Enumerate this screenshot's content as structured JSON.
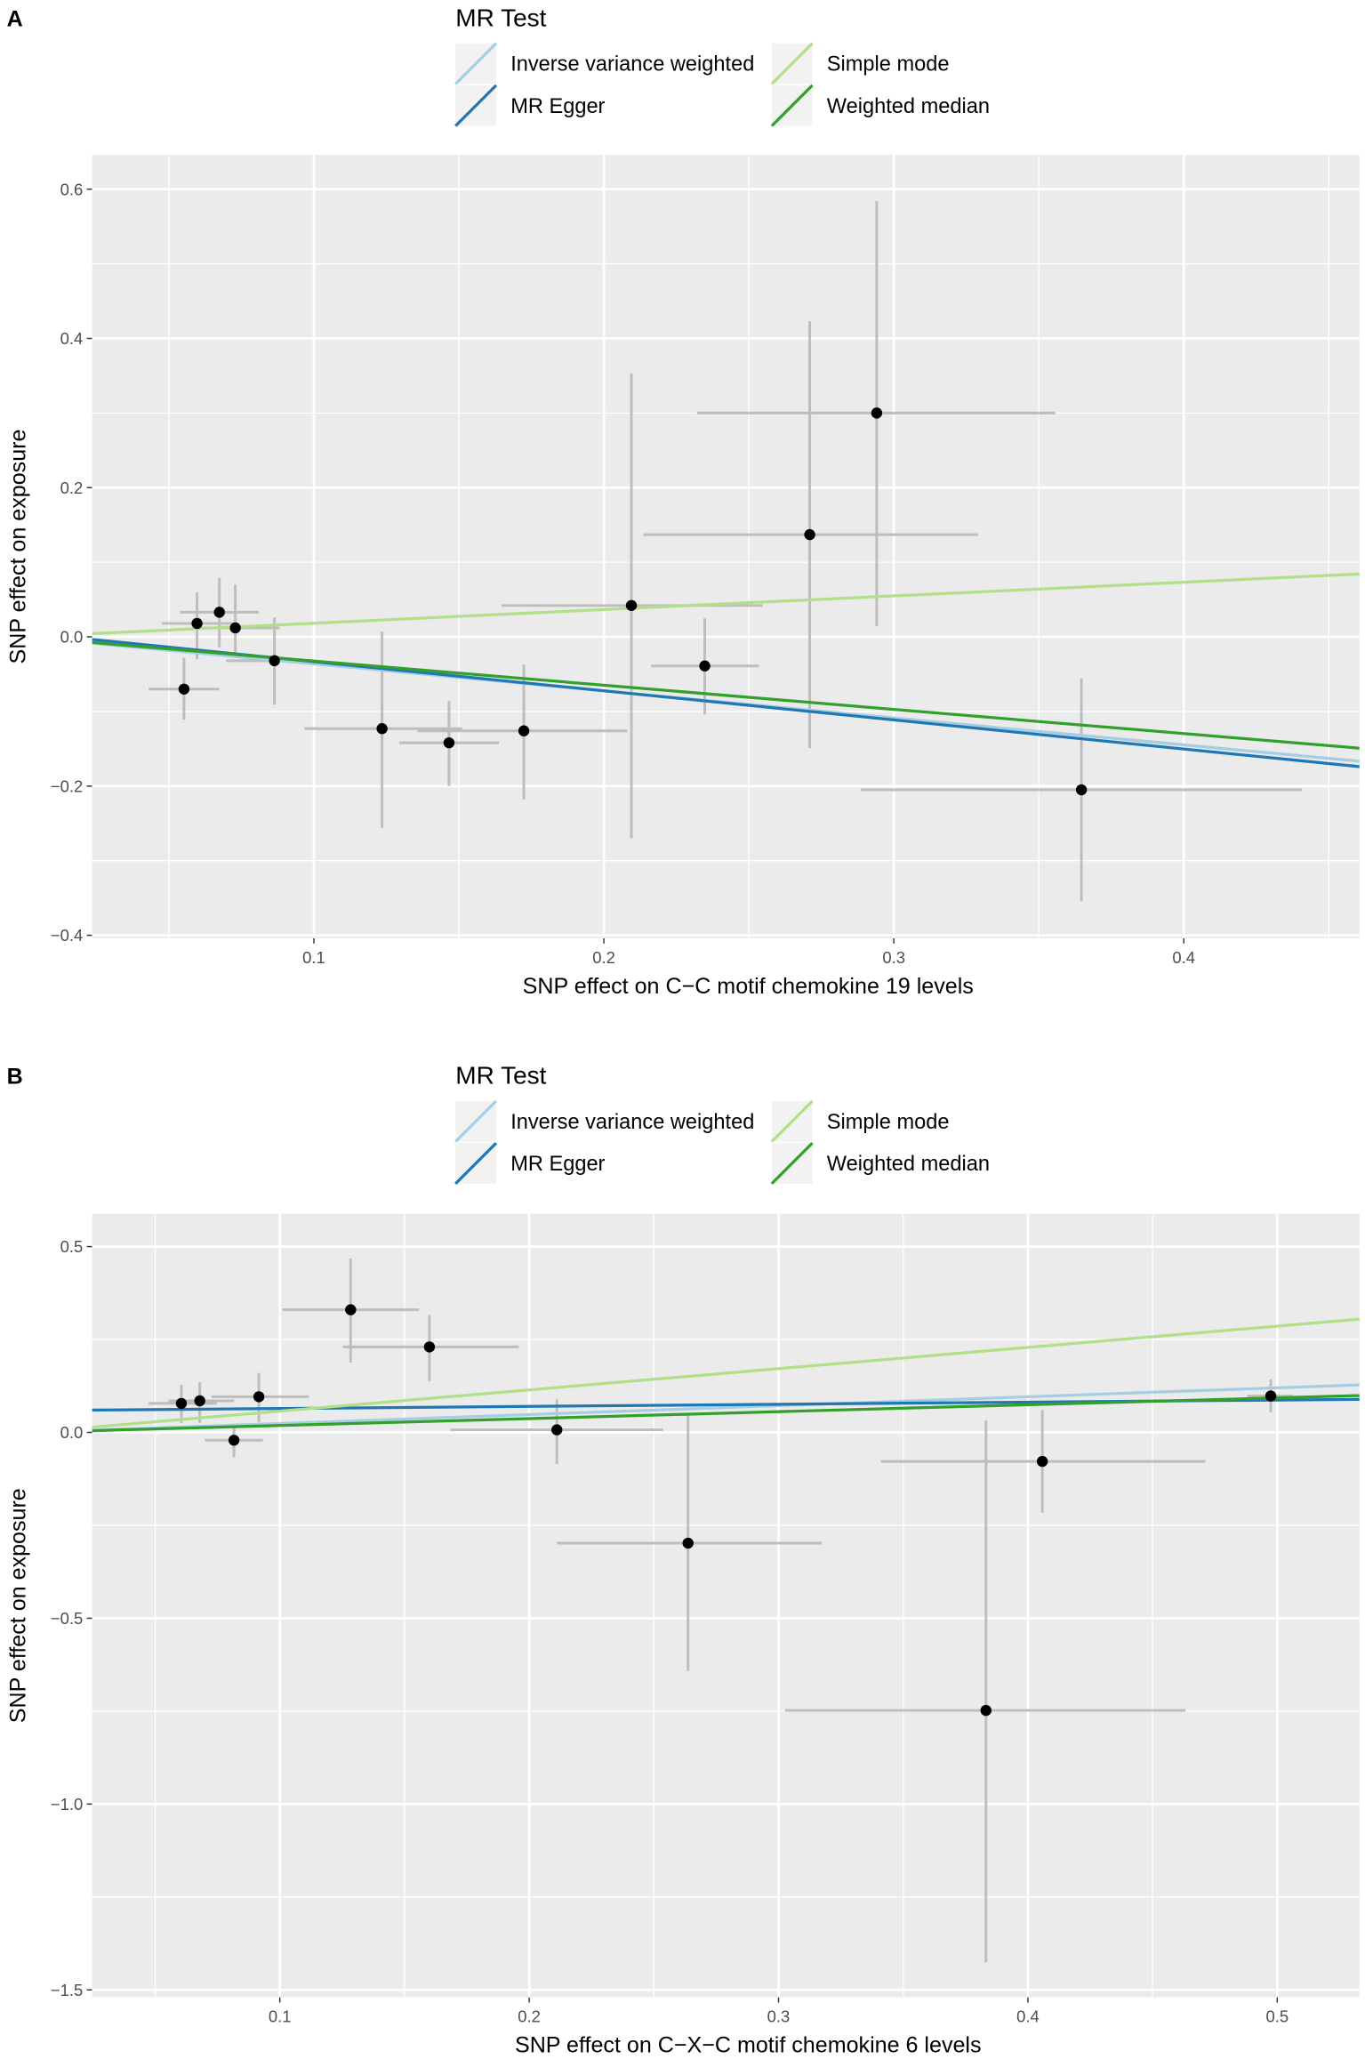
{
  "colors": {
    "panel_bg": "#EBEBEB",
    "grid": "#FFFFFF",
    "errorbar": "#BDBDBD",
    "point": "#000000",
    "Inverse variance weighted": "#A6CEE3",
    "MR Egger": "#1F78B4",
    "Simple mode": "#B2DF8A",
    "Weighted median": "#33A02C",
    "legend_key_bg": "#F2F2F2"
  },
  "chart_data": [
    {
      "panel_label": "A",
      "type": "scatter",
      "legend": {
        "title": "MR Test",
        "placement": "top",
        "entries": [
          "Inverse variance weighted",
          "MR Egger",
          "Simple mode",
          "Weighted median"
        ]
      },
      "xlabel": "SNP effect on C−C motif chemokine 19 levels",
      "ylabel": "SNP effect on exposure",
      "xlim": [
        0.0235,
        0.4606
      ],
      "ylim": [
        -0.404,
        0.646
      ],
      "xticks": [
        0.1,
        0.2,
        0.3,
        0.4
      ],
      "xtick_labels": [
        "0.1",
        "0.2",
        "0.3",
        "0.4"
      ],
      "xminor": [
        0.05,
        0.15,
        0.25,
        0.35,
        0.45
      ],
      "yticks": [
        -0.4,
        -0.2,
        0.0,
        0.2,
        0.4,
        0.6
      ],
      "ytick_labels": [
        "−0.4",
        "−0.2",
        "0.0",
        "0.2",
        "0.4",
        "0.6"
      ],
      "yminor": [
        -0.3,
        -0.1,
        0.1,
        0.3,
        0.5
      ],
      "grid": true,
      "points": [
        {
          "x": 0.0552,
          "y": -0.07,
          "xlo": 0.043,
          "xhi": 0.0674,
          "ylo": -0.111,
          "yhi": -0.028
        },
        {
          "x": 0.0597,
          "y": 0.018,
          "xlo": 0.0475,
          "xhi": 0.0724,
          "ylo": -0.03,
          "yhi": 0.06
        },
        {
          "x": 0.0674,
          "y": 0.033,
          "xlo": 0.0538,
          "xhi": 0.081,
          "ylo": -0.014,
          "yhi": 0.079
        },
        {
          "x": 0.0729,
          "y": 0.012,
          "xlo": 0.0597,
          "xhi": 0.0882,
          "ylo": -0.021,
          "yhi": 0.07
        },
        {
          "x": 0.0864,
          "y": -0.032,
          "xlo": 0.0697,
          "xhi": 0.0982,
          "ylo": -0.091,
          "yhi": 0.026
        },
        {
          "x": 0.1235,
          "y": -0.123,
          "xlo": 0.0968,
          "xhi": 0.1511,
          "ylo": -0.256,
          "yhi": 0.007
        },
        {
          "x": 0.1466,
          "y": -0.142,
          "xlo": 0.1294,
          "xhi": 0.1638,
          "ylo": -0.2,
          "yhi": -0.086
        },
        {
          "x": 0.1724,
          "y": -0.126,
          "xlo": 0.1357,
          "xhi": 0.2081,
          "ylo": -0.218,
          "yhi": -0.037
        },
        {
          "x": 0.2095,
          "y": 0.042,
          "xlo": 0.1647,
          "xhi": 0.2548,
          "ylo": -0.27,
          "yhi": 0.353
        },
        {
          "x": 0.2348,
          "y": -0.039,
          "xlo": 0.2163,
          "xhi": 0.2534,
          "ylo": -0.104,
          "yhi": 0.025
        },
        {
          "x": 0.271,
          "y": 0.137,
          "xlo": 0.2136,
          "xhi": 0.329,
          "ylo": -0.149,
          "yhi": 0.423
        },
        {
          "x": 0.2941,
          "y": 0.3,
          "xlo": 0.2321,
          "xhi": 0.3557,
          "ylo": 0.014,
          "yhi": 0.584
        },
        {
          "x": 0.3647,
          "y": -0.205,
          "xlo": 0.2887,
          "xhi": 0.4407,
          "ylo": -0.354,
          "yhi": -0.056
        }
      ],
      "lines": [
        {
          "name": "Inverse variance weighted",
          "intercept": 0.0,
          "slope": -0.362
        },
        {
          "name": "MR Egger",
          "intercept": 0.0057,
          "slope": -0.39
        },
        {
          "name": "Simple mode",
          "intercept": 0.0,
          "slope": 0.183
        },
        {
          "name": "Weighted median",
          "intercept": 0.0,
          "slope": -0.324
        }
      ]
    },
    {
      "panel_label": "B",
      "type": "scatter",
      "legend": {
        "title": "MR Test",
        "placement": "top",
        "entries": [
          "Inverse variance weighted",
          "MR Egger",
          "Simple mode",
          "Weighted median"
        ]
      },
      "xlabel": "SNP effect on C−X−C motif chemokine 6 levels",
      "ylabel": "SNP effect on exposure",
      "xlim": [
        0.0247,
        0.533
      ],
      "ylim": [
        -1.52,
        0.588
      ],
      "xticks": [
        0.1,
        0.2,
        0.3,
        0.4,
        0.5
      ],
      "xtick_labels": [
        "0.1",
        "0.2",
        "0.3",
        "0.4",
        "0.5"
      ],
      "xminor": [
        0.05,
        0.15,
        0.25,
        0.35,
        0.45
      ],
      "yticks": [
        -1.5,
        -1.0,
        -0.5,
        0.0,
        0.5
      ],
      "ytick_labels": [
        "−1.5",
        "−1.0",
        "−0.5",
        "0.0",
        "0.5"
      ],
      "yminor": [
        -1.25,
        -0.75,
        -0.25,
        0.25
      ],
      "grid": true,
      "points": [
        {
          "x": 0.0605,
          "y": 0.078,
          "xlo": 0.0474,
          "xhi": 0.0747,
          "ylo": 0.025,
          "yhi": 0.128
        },
        {
          "x": 0.0679,
          "y": 0.085,
          "xlo": 0.0553,
          "xhi": 0.0816,
          "ylo": 0.025,
          "yhi": 0.135
        },
        {
          "x": 0.0816,
          "y": -0.021,
          "xlo": 0.07,
          "xhi": 0.0932,
          "ylo": -0.067,
          "yhi": 0.018
        },
        {
          "x": 0.0916,
          "y": 0.096,
          "xlo": 0.0726,
          "xhi": 0.1116,
          "ylo": 0.028,
          "yhi": 0.16
        },
        {
          "x": 0.1284,
          "y": 0.33,
          "xlo": 0.1011,
          "xhi": 0.1558,
          "ylo": 0.188,
          "yhi": 0.468
        },
        {
          "x": 0.16,
          "y": 0.23,
          "xlo": 0.1253,
          "xhi": 0.1958,
          "ylo": 0.138,
          "yhi": 0.316
        },
        {
          "x": 0.2111,
          "y": 0.007,
          "xlo": 0.1684,
          "xhi": 0.2537,
          "ylo": -0.085,
          "yhi": 0.089
        },
        {
          "x": 0.2637,
          "y": -0.298,
          "xlo": 0.2111,
          "xhi": 0.3174,
          "ylo": -0.642,
          "yhi": 0.05
        },
        {
          "x": 0.3832,
          "y": -0.748,
          "xlo": 0.3026,
          "xhi": 0.4632,
          "ylo": -1.426,
          "yhi": 0.032
        },
        {
          "x": 0.4058,
          "y": -0.078,
          "xlo": 0.3411,
          "xhi": 0.4711,
          "ylo": -0.216,
          "yhi": 0.06
        },
        {
          "x": 0.4974,
          "y": 0.098,
          "xlo": 0.4879,
          "xhi": 0.5063,
          "ylo": 0.054,
          "yhi": 0.143
        }
      ],
      "lines": [
        {
          "name": "Inverse variance weighted",
          "intercept": 0.0,
          "slope": 0.24
        },
        {
          "name": "MR Egger",
          "intercept": 0.0586,
          "slope": 0.057
        },
        {
          "name": "Simple mode",
          "intercept": 0.0,
          "slope": 0.572
        },
        {
          "name": "Weighted median",
          "intercept": 0.0,
          "slope": 0.186
        }
      ]
    }
  ]
}
